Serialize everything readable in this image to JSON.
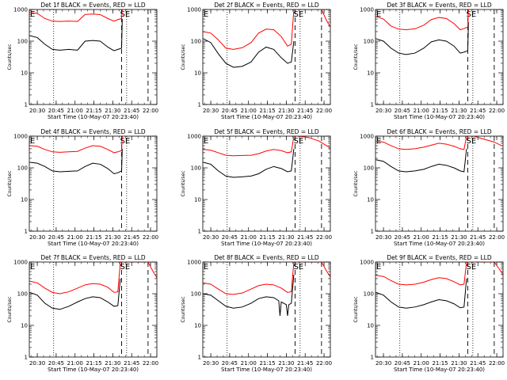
{
  "figure": {
    "ylabel": "Counts/sec",
    "xlabel": "Start Time (10-May-07 20:23:40)",
    "y_ticks": [
      "1",
      "10",
      "100",
      "1000"
    ],
    "x_ticks": [
      "20:30",
      "20:45",
      "21:00",
      "21:15",
      "21:30",
      "21:45",
      "22:00"
    ],
    "colors": {
      "events": "#000000",
      "lld": "#ff0000",
      "axes": "#000000"
    }
  },
  "chart_data": [
    {
      "type": "line",
      "title": "Det 1f BLACK = Events, RED = LLD",
      "annotations": [
        "E",
        "SE"
      ],
      "vlines": {
        "dotted": [
          "20:43",
          "21:41"
        ],
        "dashed": [
          "21:37",
          "21:58"
        ]
      },
      "ylim": [
        1,
        1000
      ],
      "yscale": "log",
      "series": [
        {
          "key": "events",
          "x": [
            "20:24",
            "20:30",
            "20:36",
            "20:42",
            "20:48",
            "20:55",
            "21:02",
            "21:08",
            "21:14",
            "21:20",
            "21:26",
            "21:31",
            "21:34",
            "21:37",
            "21:37.5"
          ],
          "y": [
            150,
            130,
            80,
            55,
            52,
            55,
            52,
            100,
            105,
            100,
            65,
            50,
            55,
            60,
            500
          ]
        },
        {
          "key": "lld",
          "x": [
            "20:24",
            "20:30",
            "20:36",
            "20:42",
            "20:48",
            "20:55",
            "21:02",
            "21:08",
            "21:14",
            "21:20",
            "21:26",
            "21:31",
            "21:34",
            "21:37",
            "21:37.5"
          ],
          "y": [
            800,
            750,
            520,
            430,
            420,
            430,
            420,
            700,
            720,
            690,
            520,
            430,
            480,
            520,
            1000
          ]
        }
      ]
    },
    {
      "type": "line",
      "title": "Det 2f BLACK = Events, RED = LLD",
      "annotations": [
        "E",
        "SE"
      ],
      "vlines": {
        "dotted": [
          "20:43",
          "21:41"
        ],
        "dashed": [
          "21:37",
          "21:58"
        ]
      },
      "ylim": [
        1,
        1000
      ],
      "yscale": "log",
      "series": [
        {
          "key": "events",
          "x": [
            "20:24",
            "20:30",
            "20:36",
            "20:42",
            "20:48",
            "20:55",
            "21:02",
            "21:08",
            "21:14",
            "21:20",
            "21:26",
            "21:31",
            "21:34",
            "21:36"
          ],
          "y": [
            120,
            90,
            40,
            20,
            15,
            16,
            22,
            45,
            65,
            55,
            30,
            20,
            22,
            100
          ]
        },
        {
          "key": "lld",
          "x": [
            "20:24",
            "20:30",
            "20:36",
            "20:42",
            "20:48",
            "20:55",
            "21:02",
            "21:08",
            "21:14",
            "21:20",
            "21:26",
            "21:31",
            "21:34",
            "21:36",
            "21:58",
            "22:02",
            "22:05"
          ],
          "y": [
            200,
            180,
            110,
            60,
            55,
            62,
            90,
            180,
            240,
            230,
            140,
            70,
            80,
            1000,
            1000,
            450,
            280
          ]
        }
      ]
    },
    {
      "type": "line",
      "title": "Det 3f BLACK = Events, RED = LLD",
      "annotations": [
        "E",
        "SE"
      ],
      "vlines": {
        "dotted": [
          "20:43",
          "21:41"
        ],
        "dashed": [
          "21:37",
          "21:58"
        ]
      },
      "ylim": [
        1,
        1000
      ],
      "yscale": "log",
      "series": [
        {
          "key": "events",
          "x": [
            "20:24",
            "20:30",
            "20:36",
            "20:42",
            "20:48",
            "20:55",
            "21:02",
            "21:08",
            "21:14",
            "21:20",
            "21:26",
            "21:31",
            "21:34",
            "21:37",
            "21:37.5"
          ],
          "y": [
            120,
            100,
            60,
            42,
            38,
            42,
            60,
            95,
            110,
            100,
            70,
            42,
            45,
            50,
            400
          ]
        },
        {
          "key": "lld",
          "x": [
            "20:24",
            "20:30",
            "20:36",
            "20:42",
            "20:48",
            "20:55",
            "21:02",
            "21:08",
            "21:14",
            "21:20",
            "21:26",
            "21:31",
            "21:34",
            "21:37",
            "21:37.5"
          ],
          "y": [
            600,
            500,
            300,
            240,
            230,
            245,
            320,
            480,
            560,
            520,
            360,
            230,
            250,
            280,
            1000
          ]
        }
      ]
    },
    {
      "type": "line",
      "title": "Det 4f BLACK = Events, RED = LLD",
      "annotations": [
        "E",
        "SE"
      ],
      "vlines": {
        "dotted": [
          "20:43",
          "21:41"
        ],
        "dashed": [
          "21:37",
          "21:58"
        ]
      },
      "ylim": [
        1,
        1000
      ],
      "yscale": "log",
      "series": [
        {
          "key": "events",
          "x": [
            "20:24",
            "20:30",
            "20:36",
            "20:42",
            "20:48",
            "20:55",
            "21:02",
            "21:08",
            "21:14",
            "21:20",
            "21:26",
            "21:31",
            "21:34",
            "21:37",
            "21:37.5"
          ],
          "y": [
            150,
            140,
            110,
            80,
            75,
            78,
            80,
            110,
            140,
            130,
            95,
            65,
            70,
            80,
            400
          ]
        },
        {
          "key": "lld",
          "x": [
            "20:24",
            "20:30",
            "20:36",
            "20:42",
            "20:48",
            "20:55",
            "21:02",
            "21:08",
            "21:14",
            "21:20",
            "21:26",
            "21:31",
            "21:34",
            "21:37",
            "21:37.5"
          ],
          "y": [
            500,
            480,
            380,
            320,
            310,
            320,
            330,
            420,
            500,
            480,
            380,
            300,
            320,
            350,
            1000
          ]
        }
      ]
    },
    {
      "type": "line",
      "title": "Det 5f BLACK = Events, RED = LLD",
      "annotations": [
        "E",
        "SE"
      ],
      "vlines": {
        "dotted": [
          "20:43",
          "21:41"
        ],
        "dashed": [
          "21:37",
          "21:58"
        ]
      },
      "ylim": [
        1,
        1000
      ],
      "yscale": "log",
      "series": [
        {
          "key": "events",
          "x": [
            "20:24",
            "20:30",
            "20:36",
            "20:42",
            "20:48",
            "20:55",
            "21:02",
            "21:08",
            "21:14",
            "21:20",
            "21:26",
            "21:31",
            "21:34",
            "21:36"
          ],
          "y": [
            150,
            130,
            80,
            55,
            50,
            52,
            55,
            65,
            90,
            110,
            95,
            75,
            80,
            400
          ]
        },
        {
          "key": "lld",
          "x": [
            "20:24",
            "20:30",
            "20:36",
            "20:42",
            "20:48",
            "20:55",
            "21:02",
            "21:08",
            "21:14",
            "21:20",
            "21:26",
            "21:31",
            "21:34",
            "21:36",
            "21:40",
            "21:48",
            "21:56",
            "22:02",
            "22:05"
          ],
          "y": [
            380,
            360,
            300,
            250,
            240,
            245,
            250,
            280,
            340,
            380,
            350,
            300,
            320,
            1000,
            1000,
            900,
            700,
            500,
            420
          ]
        }
      ]
    },
    {
      "type": "line",
      "title": "Det 6f BLACK = Events, RED = LLD",
      "annotations": [
        "E",
        "SE"
      ],
      "vlines": {
        "dotted": [
          "20:43",
          "21:41"
        ],
        "dashed": [
          "21:37",
          "21:58"
        ]
      },
      "ylim": [
        1,
        1000
      ],
      "yscale": "log",
      "series": [
        {
          "key": "events",
          "x": [
            "20:24",
            "20:30",
            "20:36",
            "20:42",
            "20:48",
            "20:55",
            "21:02",
            "21:08",
            "21:14",
            "21:20",
            "21:26",
            "21:31",
            "21:34",
            "21:36"
          ],
          "y": [
            180,
            160,
            110,
            80,
            75,
            80,
            90,
            110,
            130,
            120,
            100,
            80,
            75,
            400
          ]
        },
        {
          "key": "lld",
          "x": [
            "20:24",
            "20:30",
            "20:36",
            "20:42",
            "20:48",
            "20:55",
            "21:02",
            "21:08",
            "21:14",
            "21:20",
            "21:26",
            "21:31",
            "21:34",
            "21:36",
            "21:42",
            "21:50",
            "21:58",
            "22:04"
          ],
          "y": [
            700,
            650,
            500,
            400,
            380,
            400,
            450,
            520,
            600,
            560,
            480,
            400,
            380,
            1000,
            1000,
            800,
            650,
            500
          ]
        }
      ]
    },
    {
      "type": "line",
      "title": "Det 7f BLACK = Events, RED = LLD",
      "annotations": [
        "E",
        "SE"
      ],
      "vlines": {
        "dotted": [
          "20:43",
          "21:41"
        ],
        "dashed": [
          "21:37",
          "21:58"
        ]
      },
      "ylim": [
        1,
        1000
      ],
      "yscale": "log",
      "series": [
        {
          "key": "events",
          "x": [
            "20:24",
            "20:30",
            "20:36",
            "20:42",
            "20:48",
            "20:55",
            "21:02",
            "21:08",
            "21:14",
            "21:20",
            "21:26",
            "21:31",
            "21:34",
            "21:36"
          ],
          "y": [
            110,
            90,
            50,
            35,
            32,
            40,
            55,
            70,
            80,
            75,
            55,
            40,
            42,
            300
          ]
        },
        {
          "key": "lld",
          "x": [
            "20:24",
            "20:30",
            "20:36",
            "20:42",
            "20:48",
            "20:55",
            "21:02",
            "21:08",
            "21:14",
            "21:20",
            "21:26",
            "21:31",
            "21:34",
            "21:36",
            "21:58",
            "22:02",
            "22:05"
          ],
          "y": [
            250,
            220,
            150,
            110,
            100,
            115,
            150,
            190,
            210,
            200,
            160,
            110,
            115,
            1000,
            1000,
            500,
            320
          ]
        }
      ]
    },
    {
      "type": "line",
      "title": "Det 8f BLACK = Events, RED = LLD",
      "annotations": [
        "E",
        "SE"
      ],
      "vlines": {
        "dotted": [
          "20:43",
          "21:41"
        ],
        "dashed": [
          "21:37",
          "21:58"
        ]
      },
      "ylim": [
        1,
        1000
      ],
      "yscale": "log",
      "series": [
        {
          "key": "events",
          "x": [
            "20:24",
            "20:30",
            "20:36",
            "20:42",
            "20:48",
            "20:55",
            "21:02",
            "21:08",
            "21:14",
            "21:20",
            "21:24",
            "21:25",
            "21:26",
            "21:30",
            "21:31",
            "21:32",
            "21:34",
            "21:36"
          ],
          "y": [
            100,
            90,
            60,
            40,
            35,
            38,
            50,
            70,
            80,
            75,
            60,
            20,
            55,
            45,
            20,
            45,
            50,
            400
          ]
        },
        {
          "key": "lld",
          "x": [
            "20:24",
            "20:30",
            "20:36",
            "20:42",
            "20:48",
            "20:55",
            "21:02",
            "21:08",
            "21:14",
            "21:20",
            "21:26",
            "21:31",
            "21:34",
            "21:36",
            "21:58",
            "22:02",
            "22:05"
          ],
          "y": [
            220,
            200,
            140,
            100,
            95,
            105,
            140,
            180,
            200,
            190,
            150,
            110,
            115,
            1000,
            1000,
            520,
            340
          ]
        }
      ]
    },
    {
      "type": "line",
      "title": "Det 9f BLACK = Events, RED = LLD",
      "annotations": [
        "E",
        "SE"
      ],
      "vlines": {
        "dotted": [
          "20:43",
          "21:41"
        ],
        "dashed": [
          "21:37",
          "21:58"
        ]
      },
      "ylim": [
        1,
        1000
      ],
      "yscale": "log",
      "series": [
        {
          "key": "events",
          "x": [
            "20:24",
            "20:30",
            "20:36",
            "20:42",
            "20:48",
            "20:55",
            "21:02",
            "21:08",
            "21:14",
            "21:20",
            "21:26",
            "21:31",
            "21:34",
            "21:36"
          ],
          "y": [
            110,
            90,
            55,
            38,
            35,
            38,
            45,
            55,
            65,
            60,
            48,
            36,
            38,
            300
          ]
        },
        {
          "key": "lld",
          "x": [
            "20:24",
            "20:30",
            "20:36",
            "20:42",
            "20:48",
            "20:55",
            "21:02",
            "21:08",
            "21:14",
            "21:20",
            "21:26",
            "21:31",
            "21:34",
            "21:36",
            "21:58",
            "22:02",
            "22:05"
          ],
          "y": [
            380,
            350,
            260,
            200,
            190,
            200,
            230,
            280,
            320,
            300,
            240,
            190,
            200,
            1000,
            1000,
            600,
            400
          ]
        }
      ]
    }
  ]
}
